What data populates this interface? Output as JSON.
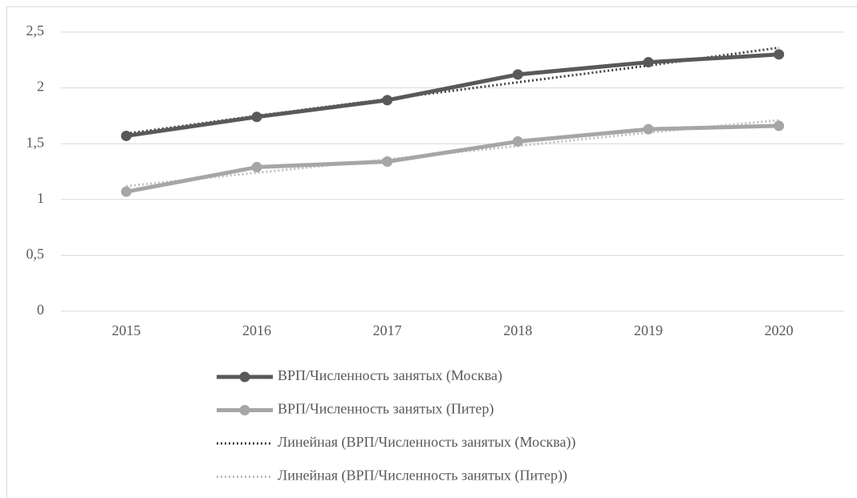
{
  "chart_data": {
    "type": "line",
    "categories": [
      "2015",
      "2016",
      "2017",
      "2018",
      "2019",
      "2020"
    ],
    "series": [
      {
        "name": "ВРП/Численность занятых (Москва)",
        "color": "#595959",
        "line_style": "solid",
        "markers": true,
        "values": [
          1.57,
          1.74,
          1.89,
          2.12,
          2.23,
          2.3
        ]
      },
      {
        "name": "ВРП/Численность занятых (Питер)",
        "color": "#a6a6a6",
        "line_style": "solid",
        "markers": true,
        "values": [
          1.07,
          1.29,
          1.34,
          1.52,
          1.63,
          1.66
        ]
      },
      {
        "name": "Линейная (ВРП/Численность занятых (Москва))",
        "color": "#404040",
        "line_style": "dotted",
        "markers": false,
        "values": [
          1.59,
          1.75,
          1.9,
          2.05,
          2.2,
          2.36
        ]
      },
      {
        "name": "Линейная (ВРП/Численность занятых (Питер))",
        "color": "#bfbfbf",
        "line_style": "dotted",
        "markers": false,
        "values": [
          1.12,
          1.24,
          1.36,
          1.48,
          1.6,
          1.71
        ]
      }
    ],
    "ylim": [
      0,
      2.5
    ],
    "yticks": [
      0,
      {
        "value": 0.5,
        "label": "0,5"
      },
      1,
      {
        "value": 1.5,
        "label": "1,5"
      },
      2,
      {
        "value": 2.5,
        "label": "2,5"
      }
    ],
    "grid": true,
    "legend": "bottom"
  }
}
